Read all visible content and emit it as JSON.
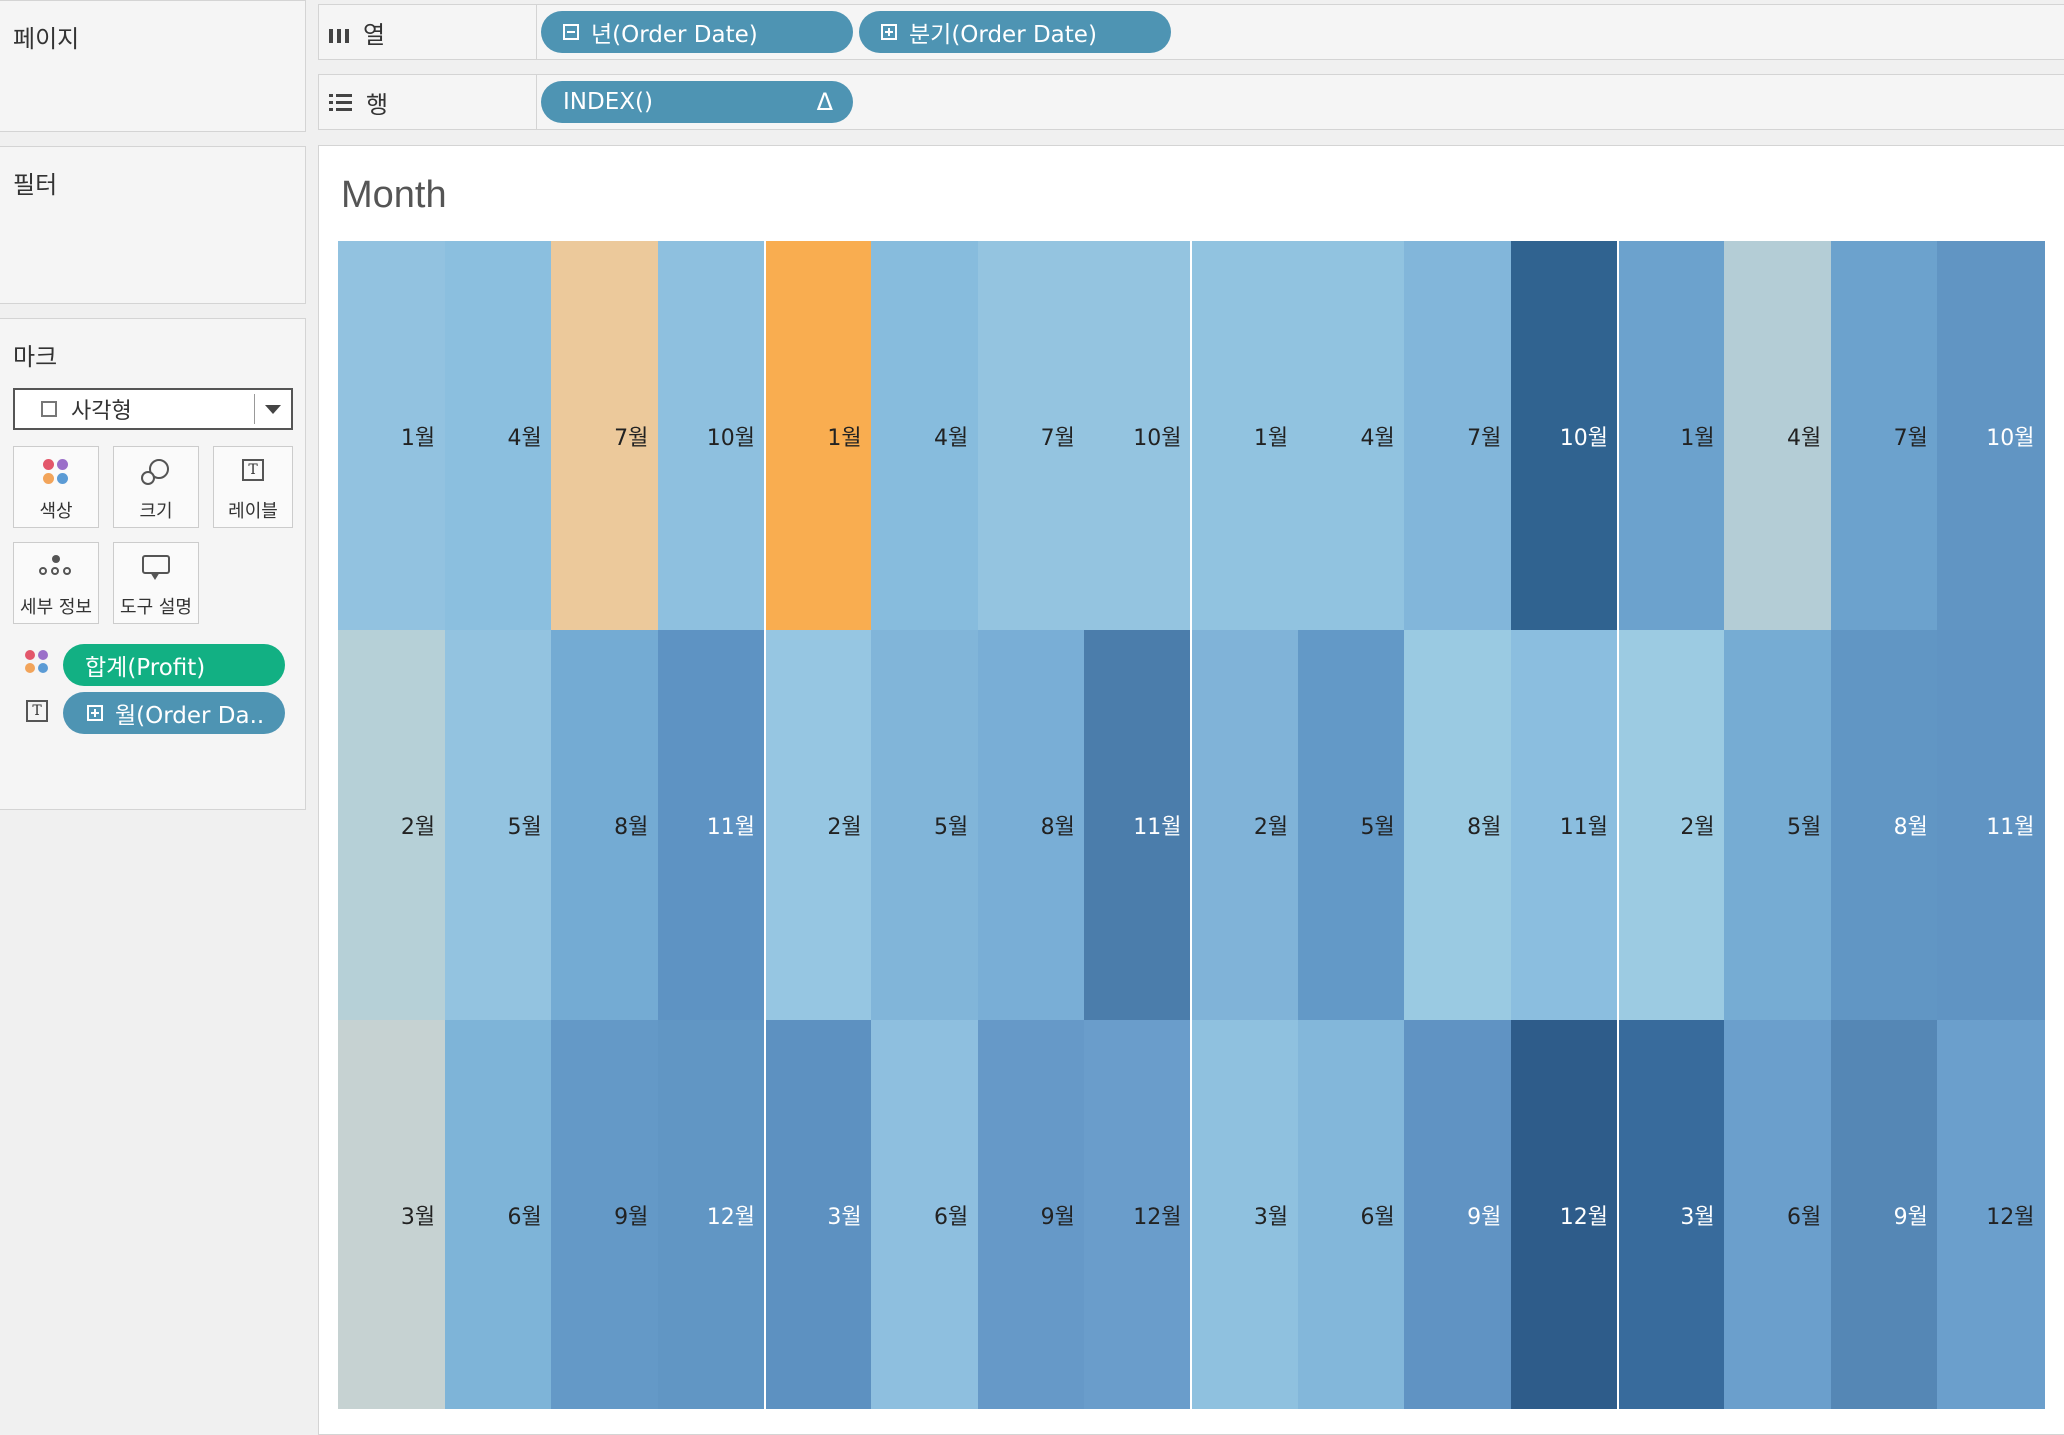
{
  "left_panel": {
    "pages_title": "페이지",
    "filters_title": "필터",
    "marks_title": "마크",
    "mark_type": "사각형",
    "tiles": {
      "color": "색상",
      "size": "크기",
      "label": "레이블",
      "detail": "세부 정보",
      "tooltip": "도구 설명"
    },
    "mark_pills": {
      "profit": "합계(Profit)",
      "month": "월(Order Da.."
    }
  },
  "shelves": {
    "columns_label": "열",
    "rows_label": "행",
    "columns_pills": [
      "년(Order Date)",
      "분기(Order Date)"
    ],
    "rows_pill": "INDEX()",
    "rows_pill_icon": "Δ"
  },
  "view": {
    "title": "Month"
  },
  "chart_data": {
    "type": "heatmap",
    "title": "Month",
    "rows": 3,
    "columns": 16,
    "year_blocks": 4,
    "cells": [
      [
        {
          "label": "1월",
          "color": "#92c2e0"
        },
        {
          "label": "4월",
          "color": "#8bbfdf"
        },
        {
          "label": "7월",
          "color": "#ecc99b"
        },
        {
          "label": "10월",
          "color": "#8ec0df"
        },
        {
          "label": "1월",
          "color": "#f9ad50"
        },
        {
          "label": "4월",
          "color": "#87bcdd"
        },
        {
          "label": "7월",
          "color": "#94c4e0"
        },
        {
          "label": "10월",
          "color": "#94c4e0"
        },
        {
          "label": "1월",
          "color": "#91c3e0"
        },
        {
          "label": "4월",
          "color": "#91c3e0"
        },
        {
          "label": "7월",
          "color": "#82b6da"
        },
        {
          "label": "10월",
          "color": "#306390"
        },
        {
          "label": "1월",
          "color": "#6ca2cd"
        },
        {
          "label": "4월",
          "color": "#b4cdd6"
        },
        {
          "label": "7월",
          "color": "#6ca2cd"
        },
        {
          "label": "10월",
          "color": "#6195c3"
        }
      ],
      [
        {
          "label": "2월",
          "color": "#b6d0d7"
        },
        {
          "label": "5월",
          "color": "#93c3e0"
        },
        {
          "label": "8월",
          "color": "#74abd3"
        },
        {
          "label": "11월",
          "color": "#5e93c3"
        },
        {
          "label": "2월",
          "color": "#96c6e2"
        },
        {
          "label": "5월",
          "color": "#81b5d9"
        },
        {
          "label": "8월",
          "color": "#79aed6"
        },
        {
          "label": "11월",
          "color": "#4b7dab"
        },
        {
          "label": "2월",
          "color": "#80b3d8"
        },
        {
          "label": "5월",
          "color": "#6399c7"
        },
        {
          "label": "8월",
          "color": "#9acae2"
        },
        {
          "label": "11월",
          "color": "#8bbedf"
        },
        {
          "label": "2월",
          "color": "#9ccbe2"
        },
        {
          "label": "5월",
          "color": "#76acd3"
        },
        {
          "label": "8월",
          "color": "#6196c4"
        },
        {
          "label": "11월",
          "color": "#6094c3"
        }
      ],
      [
        {
          "label": "3월",
          "color": "#c6d2d2"
        },
        {
          "label": "6월",
          "color": "#7eb4d8"
        },
        {
          "label": "9월",
          "color": "#6499c7"
        },
        {
          "label": "12월",
          "color": "#6196c4"
        },
        {
          "label": "3월",
          "color": "#5d91c1"
        },
        {
          "label": "6월",
          "color": "#8ebfdf"
        },
        {
          "label": "9월",
          "color": "#6699c8"
        },
        {
          "label": "12월",
          "color": "#6a9dcb"
        },
        {
          "label": "3월",
          "color": "#8fc1df"
        },
        {
          "label": "6월",
          "color": "#83b7da"
        },
        {
          "label": "9월",
          "color": "#6093c3"
        },
        {
          "label": "12월",
          "color": "#2e5c8a"
        },
        {
          "label": "3월",
          "color": "#386b9c"
        },
        {
          "label": "6월",
          "color": "#6b9fcc"
        },
        {
          "label": "9월",
          "color": "#5587b5"
        },
        {
          "label": "12월",
          "color": "#6b9fcc"
        }
      ]
    ]
  }
}
